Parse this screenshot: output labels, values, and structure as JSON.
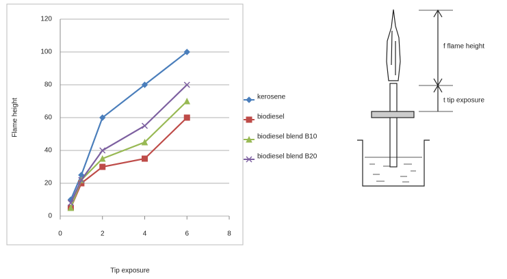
{
  "chart_data": {
    "type": "line",
    "x": [
      0.5,
      1,
      2,
      4,
      6
    ],
    "series": [
      {
        "name": "kerosene",
        "color": "#4a7ebb",
        "marker": "diamond",
        "values": [
          10,
          25,
          60,
          80,
          100
        ]
      },
      {
        "name": "biodiesel",
        "color": "#be4b48",
        "marker": "square",
        "values": [
          5,
          20,
          30,
          35,
          60
        ]
      },
      {
        "name": "biodiesel blend B10",
        "color": "#98b954",
        "marker": "triangle",
        "values": [
          5,
          22,
          35,
          45,
          70
        ]
      },
      {
        "name": "biodiesel blend B20",
        "color": "#7d60a0",
        "marker": "cross",
        "values": [
          8,
          22,
          40,
          55,
          80
        ]
      }
    ],
    "xlim": [
      0,
      8
    ],
    "xticks": [
      0,
      2,
      4,
      6,
      8
    ],
    "ylim": [
      0,
      120
    ],
    "yticks": [
      0,
      20,
      40,
      60,
      80,
      100,
      120
    ],
    "x_label": "Tip exposure",
    "y_label": "Flame height",
    "grid": true,
    "legend": "right"
  },
  "diagram": {
    "labels": [
      "f flame height",
      "t tip exposure"
    ]
  }
}
